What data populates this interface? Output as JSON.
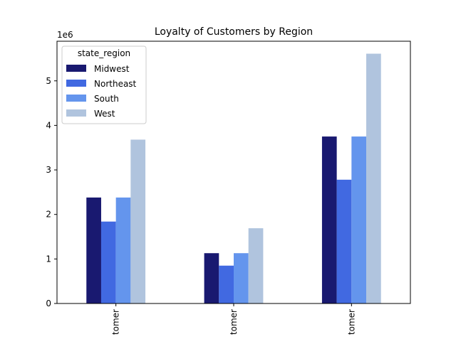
{
  "chart_data": {
    "type": "bar",
    "title": "Loyalty of Customers by Region",
    "xlabel": "",
    "ylabel": "",
    "categories": [
      "tomer",
      "tomer",
      "tomer"
    ],
    "series": [
      {
        "name": "Midwest",
        "color": "#191970",
        "values": [
          2380000,
          1130000,
          3750000
        ]
      },
      {
        "name": "Northeast",
        "color": "#4169e1",
        "values": [
          1840000,
          850000,
          2780000
        ]
      },
      {
        "name": "South",
        "color": "#6495ed",
        "values": [
          2380000,
          1130000,
          3750000
        ]
      },
      {
        "name": "West",
        "color": "#b0c4de",
        "values": [
          3680000,
          1690000,
          5610000
        ]
      }
    ],
    "ylim": [
      0,
      5890000
    ],
    "yticks": [
      0,
      1000000,
      2000000,
      3000000,
      4000000,
      5000000
    ],
    "ytick_labels": [
      "0",
      "1",
      "2",
      "3",
      "4",
      "5"
    ],
    "offset_label": "1e6",
    "legend": {
      "title": "state_region",
      "position": "upper-left"
    },
    "grid": false
  }
}
